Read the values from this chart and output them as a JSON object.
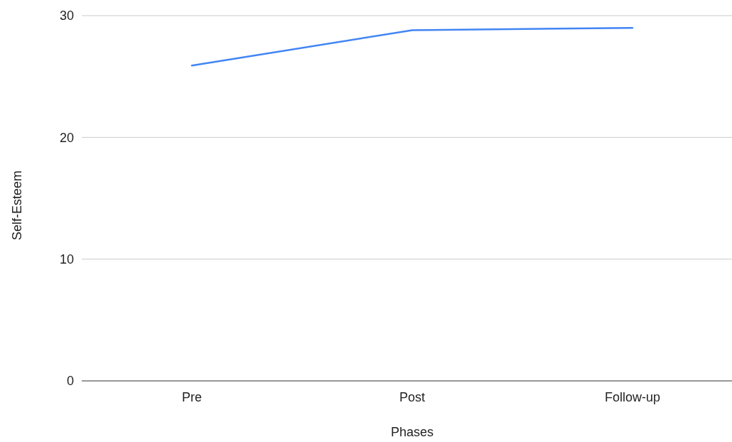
{
  "chart_data": {
    "type": "line",
    "xlabel": "Phases",
    "ylabel": "Self-Esteem",
    "categories": [
      "Pre",
      "Post",
      "Follow-up"
    ],
    "series": [
      {
        "color": "#4285f4",
        "values": [
          25.9,
          28.8,
          29.0
        ]
      }
    ],
    "ylim": [
      0,
      30
    ],
    "yticks": [
      0,
      10,
      20,
      30
    ],
    "grid": "y",
    "marker": "none",
    "line_style": "solid"
  }
}
